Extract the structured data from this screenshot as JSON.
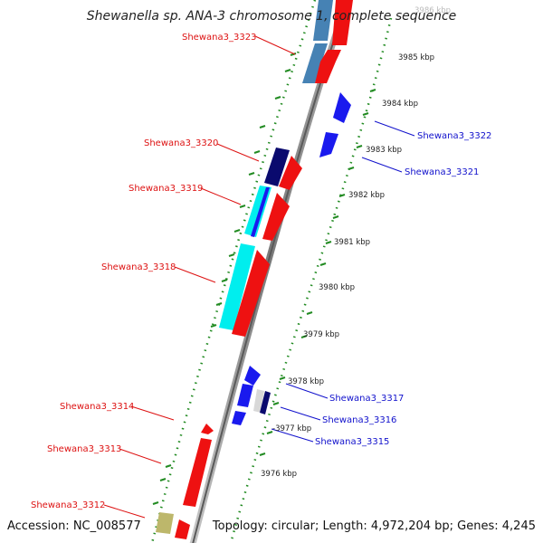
{
  "title": "Shewanella sp. ANA-3 chromosome 1, complete sequence",
  "accession_text": "Accession: NC_008577",
  "topology_text": "Topology: circular; Length: 4,972,204 bp; Genes: 4,245",
  "scale_labels": [
    {
      "text": "3986 kbp",
      "faded": true
    },
    {
      "text": "3985 kbp"
    },
    {
      "text": "3984 kbp"
    },
    {
      "text": "3983 kbp"
    },
    {
      "text": "3982 kbp"
    },
    {
      "text": "3981 kbp"
    },
    {
      "text": "3980 kbp"
    },
    {
      "text": "3979 kbp"
    },
    {
      "text": "3978 kbp"
    },
    {
      "text": "-3977 kbp"
    },
    {
      "text": "3976 kbp"
    }
  ],
  "gene_labels": [
    {
      "text": "Shewana3_3323",
      "strand": "left"
    },
    {
      "text": "Shewana3_3322",
      "strand": "right"
    },
    {
      "text": "Shewana3_3321",
      "strand": "right"
    },
    {
      "text": "Shewana3_3320",
      "strand": "left"
    },
    {
      "text": "Shewana3_3319",
      "strand": "left"
    },
    {
      "text": "Shewana3_3318",
      "strand": "left"
    },
    {
      "text": "Shewana3_3317",
      "strand": "right"
    },
    {
      "text": "Shewana3_3316",
      "strand": "right"
    },
    {
      "text": "Shewana3_3315",
      "strand": "right"
    },
    {
      "text": "Shewana3_3314",
      "strand": "left"
    },
    {
      "text": "Shewana3_3313",
      "strand": "left"
    },
    {
      "text": "Shewana3_3312",
      "strand": "left"
    }
  ],
  "colors": {
    "left_label": "#dd1111",
    "right_label": "#1111cc",
    "forward_gene": "#ee1111",
    "reverse_gene": "#1a1aee",
    "steel_gene": "#4682b4",
    "navy_gene": "#0a0a6e",
    "cyan_gene": "#00eeee",
    "khaki_gene": "#bdb76b",
    "backbone": "#888888",
    "dotted_track": "#228b22"
  }
}
